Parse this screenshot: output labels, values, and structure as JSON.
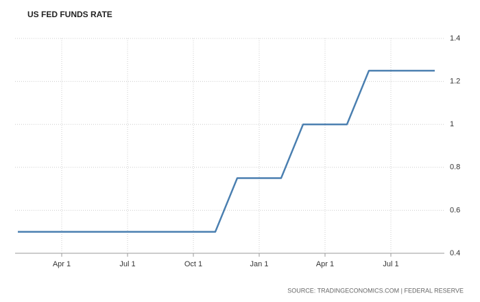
{
  "chart_data": {
    "type": "line",
    "title": "US FED FUNDS RATE",
    "source": "SOURCE: TRADINGECONOMICS.COM | FEDERAL RESERVE",
    "categories": [
      null,
      null,
      "Apr 1",
      null,
      null,
      "Jul 1",
      null,
      null,
      "Oct 1",
      null,
      null,
      "Jan 1",
      null,
      null,
      "Apr 1",
      null,
      null,
      "Jul 1",
      null,
      null
    ],
    "series": [
      {
        "color": "#4a7fb0",
        "values": [
          0.5,
          0.5,
          0.5,
          0.5,
          0.5,
          0.5,
          0.5,
          0.5,
          0.5,
          0.5,
          0.75,
          0.75,
          0.75,
          1.0,
          1.0,
          1.0,
          1.25,
          1.25,
          1.25,
          1.25
        ]
      }
    ],
    "ylim": [
      0.4,
      1.4
    ],
    "yticks": [
      0.4,
      0.6,
      0.8,
      1,
      1.2,
      1.4
    ],
    "y_axis_side": "right",
    "grid": true
  }
}
